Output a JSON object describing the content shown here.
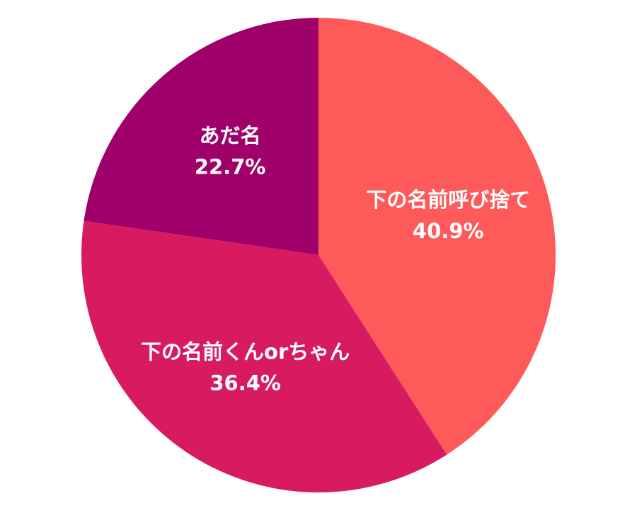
{
  "chart_data": {
    "type": "pie",
    "categories": [
      "下の名前呼び捨て",
      "下の名前くんorちゃん",
      "あだ名"
    ],
    "values": [
      40.9,
      36.4,
      22.7
    ],
    "value_labels": [
      "40.9%",
      "36.4%",
      "22.7%"
    ],
    "colors": [
      "#ff5a5a",
      "#d81b60",
      "#a0006a"
    ]
  }
}
